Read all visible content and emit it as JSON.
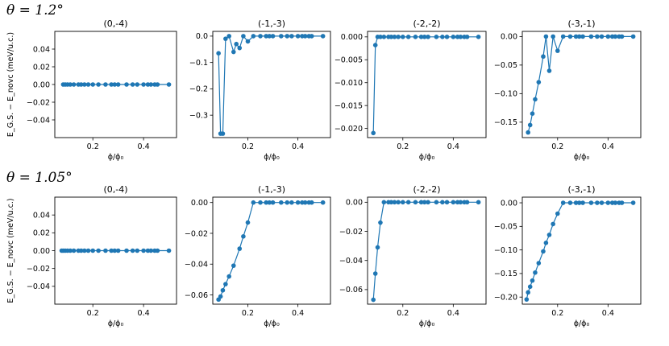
{
  "rows": [
    {
      "title": "θ = 1.2°"
    },
    {
      "title": "θ = 1.05°"
    }
  ],
  "series_color": "#1f77b4",
  "chart_data": [
    {
      "type": "line",
      "row": 0,
      "col": 0,
      "title": "(0,-4)",
      "xlabel": "ϕ/ϕ₀",
      "ylabel": "E_G.S. − E_novc (meV/u.c.)",
      "xlim": [
        0.05,
        0.53
      ],
      "ylim": [
        -0.06,
        0.06
      ],
      "xticks": [
        0.2,
        0.4
      ],
      "xtick_labels": [
        "0.2",
        "0.4"
      ],
      "yticks": [
        -0.04,
        -0.02,
        0.0,
        0.02,
        0.04
      ],
      "ytick_labels": [
        "−0.04",
        "−0.02",
        "0.00",
        "0.02",
        "0.04"
      ],
      "x": [
        0.083,
        0.091,
        0.1,
        0.111,
        0.125,
        0.143,
        0.154,
        0.167,
        0.182,
        0.2,
        0.222,
        0.25,
        0.273,
        0.286,
        0.3,
        0.333,
        0.357,
        0.375,
        0.4,
        0.417,
        0.429,
        0.444,
        0.455,
        0.5
      ],
      "y": [
        0,
        0,
        0,
        0,
        0,
        0,
        0,
        0,
        0,
        0,
        0,
        0,
        0,
        0,
        0,
        0,
        0,
        0,
        0,
        0,
        0,
        0,
        0,
        0
      ]
    },
    {
      "type": "line",
      "row": 0,
      "col": 1,
      "title": "(-1,-3)",
      "xlabel": "ϕ/ϕ₀",
      "ylabel": "",
      "xlim": [
        0.06,
        0.53
      ],
      "ylim": [
        -0.385,
        0.018
      ],
      "xticks": [
        0.2,
        0.4
      ],
      "xtick_labels": [
        "0.2",
        "0.4"
      ],
      "yticks": [
        -0.3,
        -0.2,
        -0.1,
        0.0
      ],
      "ytick_labels": [
        "−0.3",
        "−0.2",
        "−0.1",
        "0.0"
      ],
      "x": [
        0.083,
        0.091,
        0.1,
        0.111,
        0.125,
        0.143,
        0.154,
        0.167,
        0.182,
        0.2,
        0.222,
        0.25,
        0.273,
        0.286,
        0.3,
        0.333,
        0.357,
        0.375,
        0.4,
        0.417,
        0.429,
        0.444,
        0.455,
        0.5
      ],
      "y": [
        -0.065,
        -0.37,
        -0.37,
        -0.01,
        0.0,
        -0.06,
        -0.03,
        -0.045,
        0.0,
        -0.02,
        0.0,
        0.0,
        0.0,
        0.0,
        0.0,
        0.0,
        0.0,
        0.0,
        0.0,
        0.0,
        0.0,
        0.0,
        0.0,
        0.0
      ]
    },
    {
      "type": "line",
      "row": 0,
      "col": 2,
      "title": "(-2,-2)",
      "xlabel": "ϕ/ϕ₀",
      "ylabel": "",
      "xlim": [
        0.06,
        0.53
      ],
      "ylim": [
        -0.022,
        0.0012
      ],
      "xticks": [
        0.2,
        0.4
      ],
      "xtick_labels": [
        "0.2",
        "0.4"
      ],
      "yticks": [
        -0.02,
        -0.015,
        -0.01,
        -0.005,
        0.0
      ],
      "ytick_labels": [
        "−0.020",
        "−0.015",
        "−0.010",
        "−0.005",
        "0.000"
      ],
      "x": [
        0.083,
        0.091,
        0.1,
        0.111,
        0.125,
        0.143,
        0.154,
        0.167,
        0.182,
        0.2,
        0.222,
        0.25,
        0.273,
        0.286,
        0.3,
        0.333,
        0.357,
        0.375,
        0.4,
        0.417,
        0.429,
        0.444,
        0.455,
        0.5
      ],
      "y": [
        -0.021,
        -0.0018,
        0.0,
        0.0,
        0.0,
        0.0,
        0.0,
        0.0,
        0.0,
        0.0,
        0.0,
        0.0,
        0.0,
        0.0,
        0.0,
        0.0,
        0.0,
        0.0,
        0.0,
        0.0,
        0.0,
        0.0,
        0.0,
        0.0
      ]
    },
    {
      "type": "line",
      "row": 0,
      "col": 3,
      "title": "(-3,-1)",
      "xlabel": "ϕ/ϕ₀",
      "ylabel": "",
      "xlim": [
        0.06,
        0.53
      ],
      "ylim": [
        -0.177,
        0.009
      ],
      "xticks": [
        0.2,
        0.4
      ],
      "xtick_labels": [
        "0.2",
        "0.4"
      ],
      "yticks": [
        -0.15,
        -0.1,
        -0.05,
        0.0
      ],
      "ytick_labels": [
        "−0.15",
        "−0.10",
        "−0.05",
        "0.00"
      ],
      "x": [
        0.083,
        0.091,
        0.1,
        0.111,
        0.125,
        0.143,
        0.154,
        0.167,
        0.182,
        0.2,
        0.222,
        0.25,
        0.273,
        0.286,
        0.3,
        0.333,
        0.357,
        0.375,
        0.4,
        0.417,
        0.429,
        0.444,
        0.455,
        0.5
      ],
      "y": [
        -0.168,
        -0.155,
        -0.135,
        -0.11,
        -0.08,
        -0.035,
        0.0,
        -0.06,
        0.0,
        -0.025,
        0.0,
        0.0,
        0.0,
        0.0,
        0.0,
        0.0,
        0.0,
        0.0,
        0.0,
        0.0,
        0.0,
        0.0,
        0.0,
        0.0
      ]
    },
    {
      "type": "line",
      "row": 1,
      "col": 0,
      "title": "(0,-4)",
      "xlabel": "ϕ/ϕ₀",
      "ylabel": "E_G.S. − E_novc (meV/u.c.)",
      "xlim": [
        0.05,
        0.53
      ],
      "ylim": [
        -0.06,
        0.06
      ],
      "xticks": [
        0.2,
        0.4
      ],
      "xtick_labels": [
        "0.2",
        "0.4"
      ],
      "yticks": [
        -0.04,
        -0.02,
        0.0,
        0.02,
        0.04
      ],
      "ytick_labels": [
        "−0.04",
        "−0.02",
        "0.00",
        "0.02",
        "0.04"
      ],
      "x": [
        0.077,
        0.083,
        0.091,
        0.1,
        0.111,
        0.125,
        0.143,
        0.154,
        0.167,
        0.182,
        0.2,
        0.222,
        0.25,
        0.273,
        0.286,
        0.3,
        0.333,
        0.357,
        0.375,
        0.4,
        0.417,
        0.429,
        0.444,
        0.455,
        0.5
      ],
      "y": [
        0,
        0,
        0,
        0,
        0,
        0,
        0,
        0,
        0,
        0,
        0,
        0,
        0,
        0,
        0,
        0,
        0,
        0,
        0,
        0,
        0,
        0,
        0,
        0,
        0
      ]
    },
    {
      "type": "line",
      "row": 1,
      "col": 1,
      "title": "(-1,-3)",
      "xlabel": "ϕ/ϕ₀",
      "ylabel": "",
      "xlim": [
        0.06,
        0.53
      ],
      "ylim": [
        -0.066,
        0.0035
      ],
      "xticks": [
        0.2,
        0.4
      ],
      "xtick_labels": [
        "0.2",
        "0.4"
      ],
      "yticks": [
        -0.06,
        -0.04,
        -0.02,
        0.0
      ],
      "ytick_labels": [
        "−0.06",
        "−0.04",
        "−0.02",
        "0.00"
      ],
      "x": [
        0.083,
        0.091,
        0.1,
        0.111,
        0.125,
        0.143,
        0.167,
        0.182,
        0.2,
        0.222,
        0.25,
        0.273,
        0.286,
        0.3,
        0.333,
        0.357,
        0.375,
        0.4,
        0.417,
        0.429,
        0.444,
        0.455,
        0.5
      ],
      "y": [
        -0.063,
        -0.061,
        -0.057,
        -0.053,
        -0.048,
        -0.041,
        -0.03,
        -0.022,
        -0.013,
        0.0,
        0.0,
        0.0,
        0.0,
        0.0,
        0.0,
        0.0,
        0.0,
        0.0,
        0.0,
        0.0,
        0.0,
        0.0,
        0.0
      ]
    },
    {
      "type": "line",
      "row": 1,
      "col": 2,
      "title": "(-2,-2)",
      "xlabel": "ϕ/ϕ₀",
      "ylabel": "",
      "xlim": [
        0.06,
        0.53
      ],
      "ylim": [
        -0.07,
        0.0035
      ],
      "xticks": [
        0.2,
        0.4
      ],
      "xtick_labels": [
        "0.2",
        "0.4"
      ],
      "yticks": [
        -0.06,
        -0.04,
        -0.02,
        0.0
      ],
      "ytick_labels": [
        "−0.06",
        "−0.04",
        "−0.02",
        "0.00"
      ],
      "x": [
        0.083,
        0.091,
        0.1,
        0.111,
        0.125,
        0.143,
        0.154,
        0.167,
        0.182,
        0.2,
        0.222,
        0.25,
        0.273,
        0.286,
        0.3,
        0.333,
        0.357,
        0.375,
        0.4,
        0.417,
        0.429,
        0.444,
        0.455,
        0.5
      ],
      "y": [
        -0.067,
        -0.049,
        -0.031,
        -0.014,
        0.0,
        0.0,
        0.0,
        0.0,
        0.0,
        0.0,
        0.0,
        0.0,
        0.0,
        0.0,
        0.0,
        0.0,
        0.0,
        0.0,
        0.0,
        0.0,
        0.0,
        0.0,
        0.0,
        0.0
      ]
    },
    {
      "type": "line",
      "row": 1,
      "col": 3,
      "title": "(-3,-1)",
      "xlabel": "ϕ/ϕ₀",
      "ylabel": "",
      "xlim": [
        0.06,
        0.53
      ],
      "ylim": [
        -0.215,
        0.012
      ],
      "xticks": [
        0.2,
        0.4
      ],
      "xtick_labels": [
        "0.2",
        "0.4"
      ],
      "yticks": [
        -0.2,
        -0.15,
        -0.1,
        -0.05,
        0.0
      ],
      "ytick_labels": [
        "−0.20",
        "−0.15",
        "−0.10",
        "−0.05",
        "0.00"
      ],
      "x": [
        0.077,
        0.083,
        0.091,
        0.1,
        0.111,
        0.125,
        0.143,
        0.154,
        0.167,
        0.182,
        0.2,
        0.222,
        0.25,
        0.273,
        0.286,
        0.3,
        0.333,
        0.357,
        0.375,
        0.4,
        0.417,
        0.429,
        0.444,
        0.455,
        0.5
      ],
      "y": [
        -0.205,
        -0.19,
        -0.178,
        -0.165,
        -0.148,
        -0.128,
        -0.103,
        -0.085,
        -0.068,
        -0.045,
        -0.023,
        0.0,
        0.0,
        0.0,
        0.0,
        0.0,
        0.0,
        0.0,
        0.0,
        0.0,
        0.0,
        0.0,
        0.0,
        0.0,
        0.0
      ]
    }
  ]
}
